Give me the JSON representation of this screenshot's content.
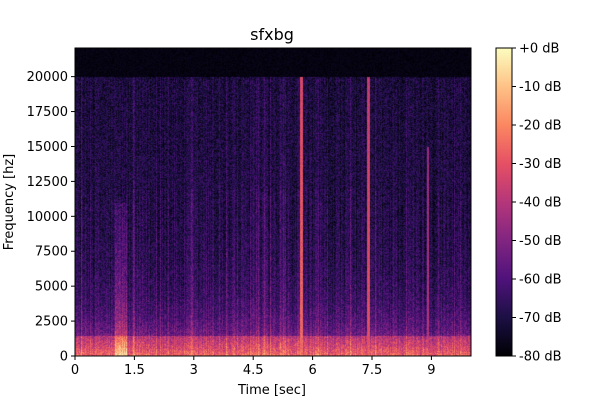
{
  "chart_data": {
    "type": "heatmap",
    "title": "sfxbg",
    "xlabel": "Time [sec]",
    "ylabel": "Frequency [hz]",
    "xlim": [
      0,
      10.0
    ],
    "ylim": [
      0,
      22050
    ],
    "x_ticks": [
      0,
      1.5,
      3,
      4.5,
      6,
      7.5,
      9
    ],
    "x_tick_labels": [
      "0",
      "1.5",
      "3",
      "4.5",
      "6",
      "7.5",
      "9"
    ],
    "y_ticks": [
      0,
      2500,
      5000,
      7500,
      10000,
      12500,
      15000,
      17500,
      20000
    ],
    "y_tick_labels": [
      "0",
      "2500",
      "5000",
      "7500",
      "10000",
      "12500",
      "15000",
      "17500",
      "20000"
    ],
    "colorbar": {
      "range": [
        -80,
        0
      ],
      "ticks": [
        0,
        -10,
        -20,
        -30,
        -40,
        -50,
        -60,
        -70,
        -80
      ],
      "tick_labels": [
        "+0 dB",
        "-10 dB",
        "-20 dB",
        "-30 dB",
        "-40 dB",
        "-50 dB",
        "-60 dB",
        "-70 dB",
        "-80 dB"
      ],
      "colormap": "magma"
    },
    "features": {
      "low_freq_energy_max_hz": 1500,
      "high_freq_cutoff_hz": 20000,
      "bright_band": {
        "time_range": [
          1.0,
          1.3
        ],
        "freq_range": [
          0,
          11000
        ],
        "level_db": -30
      },
      "vertical_lines": [
        {
          "time": 5.7,
          "freq_max": 21000,
          "level_db": -25
        },
        {
          "time": 7.4,
          "freq_max": 20000,
          "level_db": -30
        },
        {
          "time": 8.9,
          "freq_max": 15000,
          "level_db": -40
        }
      ]
    }
  },
  "colors": {
    "magma_stops": [
      "#000004",
      "#1c1044",
      "#4f127b",
      "#812581",
      "#b5367a",
      "#e55064",
      "#fb8761",
      "#fec287",
      "#fcfdbf"
    ]
  }
}
